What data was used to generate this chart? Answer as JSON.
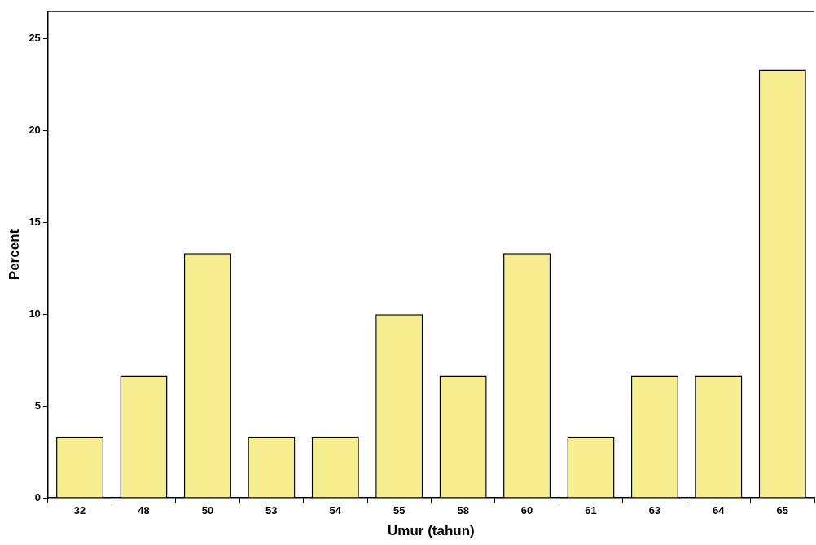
{
  "chart_data": {
    "type": "bar",
    "xlabel": "Umur (tahun)",
    "ylabel": "Percent",
    "categories": [
      "32",
      "48",
      "50",
      "53",
      "54",
      "55",
      "58",
      "60",
      "61",
      "63",
      "64",
      "65"
    ],
    "values": [
      3.33,
      6.67,
      13.33,
      3.33,
      3.33,
      10,
      6.67,
      13.33,
      3.33,
      6.67,
      6.67,
      23.33
    ],
    "color": "#f7ef8f",
    "ylim": [
      0,
      26.5
    ],
    "yticks": [
      0,
      5,
      10,
      15,
      20,
      25
    ],
    "grid": false,
    "legend": false
  }
}
